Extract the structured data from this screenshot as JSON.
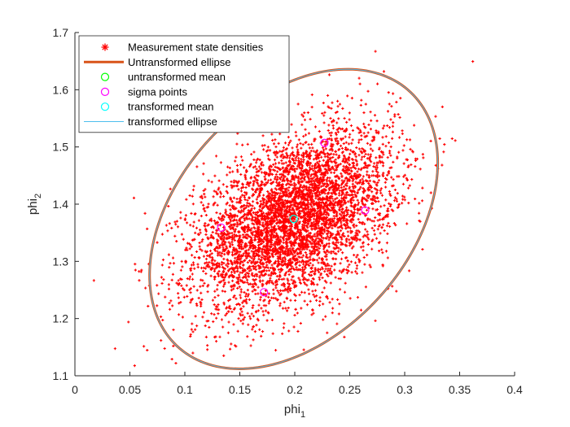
{
  "chart_data": {
    "type": "scatter",
    "title": "",
    "xlabel": "phi",
    "xlabel_sub": "1",
    "ylabel": "phi",
    "ylabel_sub": "2",
    "xlim": [
      0,
      0.4
    ],
    "ylim": [
      1.1,
      1.7
    ],
    "xticks": [
      "0",
      "0.05",
      "0.1",
      "0.15",
      "0.2",
      "0.25",
      "0.3",
      "0.35",
      "0.4"
    ],
    "yticks": [
      "1.1",
      "1.2",
      "1.3",
      "1.4",
      "1.5",
      "1.6",
      "1.7"
    ],
    "grid": false,
    "legend_position": "top-left",
    "legend": [
      {
        "label": "Measurement state densities",
        "marker": "asterisk",
        "color": "#ff0000"
      },
      {
        "label": "Untransformed ellipse",
        "marker": "line-thick",
        "color": "#d95319"
      },
      {
        "label": "untransformed mean",
        "marker": "circle",
        "color": "#00ff00"
      },
      {
        "label": "sigma points",
        "marker": "circle",
        "color": "#ff00ff"
      },
      {
        "label": "transformed mean",
        "marker": "circle",
        "color": "#00ffff"
      },
      {
        "label": "transformed ellipse",
        "marker": "line-thin",
        "color": "#4dbeee"
      }
    ],
    "scatter_cloud": {
      "center": [
        0.199,
        1.374
      ],
      "std": [
        0.045,
        0.077
      ],
      "correlation": 0.45,
      "count": 5000,
      "color": "#ff0000"
    },
    "ellipse": {
      "center": [
        0.199,
        1.374
      ],
      "vertices": [
        [
          0.315,
          1.574
        ],
        [
          0.083,
          1.174
        ]
      ],
      "co_vertices": [
        [
          0.138,
          1.543
        ],
        [
          0.261,
          1.205
        ]
      ],
      "untransformed_color": "#d95319",
      "transformed_color": "#4dbeee"
    },
    "untransformed_mean": [
      0.199,
      1.374
    ],
    "transformed_mean": [
      0.199,
      1.374
    ],
    "sigma_points": [
      [
        0.264,
        1.389
      ],
      [
        0.133,
        1.359
      ],
      [
        0.227,
        1.507
      ],
      [
        0.172,
        1.246
      ]
    ]
  }
}
